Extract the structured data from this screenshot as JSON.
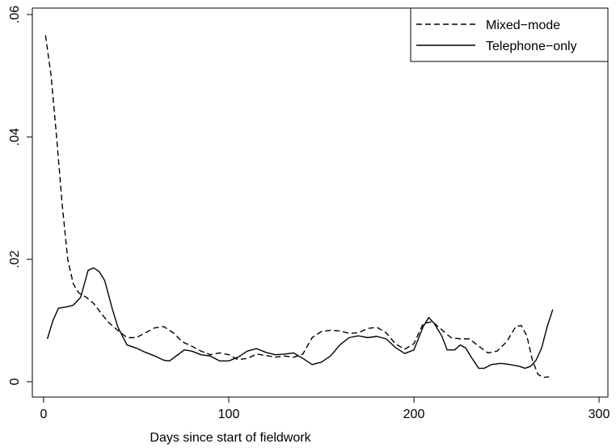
{
  "chart_data": {
    "type": "line",
    "title": "",
    "xlabel": "Days since start of fieldwork",
    "ylabel": "",
    "xlim": [
      0,
      300
    ],
    "ylim": [
      0,
      0.06
    ],
    "grid": false,
    "legend_position": "top-right",
    "x_ticks": [
      {
        "value": 0,
        "label": "0"
      },
      {
        "value": 100,
        "label": "100"
      },
      {
        "value": 200,
        "label": "200"
      },
      {
        "value": 300,
        "label": "300"
      }
    ],
    "y_ticks": [
      {
        "value": 0,
        "label": "0"
      },
      {
        "value": 0.02,
        "label": ".02"
      },
      {
        "value": 0.04,
        "label": ".04"
      },
      {
        "value": 0.06,
        "label": ".06"
      }
    ],
    "series": [
      {
        "name": "Mixed−mode",
        "style": "dashed",
        "color": "#000000",
        "points": [
          [
            1,
            0.0566
          ],
          [
            4,
            0.05
          ],
          [
            7,
            0.04
          ],
          [
            10,
            0.029
          ],
          [
            13,
            0.02
          ],
          [
            16,
            0.016
          ],
          [
            19,
            0.0145
          ],
          [
            23,
            0.0138
          ],
          [
            27,
            0.0128
          ],
          [
            31,
            0.0112
          ],
          [
            35,
            0.0097
          ],
          [
            40,
            0.0084
          ],
          [
            45,
            0.0072
          ],
          [
            50,
            0.0072
          ],
          [
            55,
            0.008
          ],
          [
            60,
            0.0088
          ],
          [
            65,
            0.009
          ],
          [
            70,
            0.008
          ],
          [
            75,
            0.0065
          ],
          [
            80,
            0.0058
          ],
          [
            85,
            0.005
          ],
          [
            90,
            0.0044
          ],
          [
            95,
            0.0047
          ],
          [
            100,
            0.0044
          ],
          [
            105,
            0.0036
          ],
          [
            110,
            0.0038
          ],
          [
            115,
            0.0045
          ],
          [
            120,
            0.0043
          ],
          [
            125,
            0.004
          ],
          [
            130,
            0.0042
          ],
          [
            135,
            0.004
          ],
          [
            140,
            0.0045
          ],
          [
            145,
            0.0072
          ],
          [
            150,
            0.0082
          ],
          [
            155,
            0.0084
          ],
          [
            160,
            0.0083
          ],
          [
            165,
            0.0079
          ],
          [
            170,
            0.008
          ],
          [
            175,
            0.0087
          ],
          [
            180,
            0.0089
          ],
          [
            185,
            0.008
          ],
          [
            190,
            0.0062
          ],
          [
            195,
            0.0053
          ],
          [
            200,
            0.0062
          ],
          [
            205,
            0.0095
          ],
          [
            210,
            0.0098
          ],
          [
            215,
            0.0085
          ],
          [
            220,
            0.0072
          ],
          [
            225,
            0.007
          ],
          [
            230,
            0.007
          ],
          [
            235,
            0.0058
          ],
          [
            240,
            0.0047
          ],
          [
            245,
            0.005
          ],
          [
            250,
            0.0065
          ],
          [
            255,
            0.009
          ],
          [
            258,
            0.0092
          ],
          [
            261,
            0.0075
          ],
          [
            264,
            0.0035
          ],
          [
            267,
            0.0012
          ],
          [
            270,
            0.0007
          ],
          [
            273,
            0.0008
          ]
        ]
      },
      {
        "name": "Telephone−only",
        "style": "solid",
        "color": "#000000",
        "points": [
          [
            2,
            0.007
          ],
          [
            5,
            0.01
          ],
          [
            8,
            0.012
          ],
          [
            12,
            0.0122
          ],
          [
            16,
            0.0125
          ],
          [
            20,
            0.0138
          ],
          [
            24,
            0.0182
          ],
          [
            27,
            0.0186
          ],
          [
            30,
            0.018
          ],
          [
            33,
            0.0165
          ],
          [
            37,
            0.012
          ],
          [
            40,
            0.009
          ],
          [
            45,
            0.006
          ],
          [
            50,
            0.0055
          ],
          [
            55,
            0.0048
          ],
          [
            60,
            0.0042
          ],
          [
            65,
            0.0035
          ],
          [
            68,
            0.0034
          ],
          [
            72,
            0.0043
          ],
          [
            76,
            0.0052
          ],
          [
            80,
            0.005
          ],
          [
            85,
            0.0044
          ],
          [
            90,
            0.0042
          ],
          [
            95,
            0.0034
          ],
          [
            100,
            0.0034
          ],
          [
            105,
            0.004
          ],
          [
            110,
            0.005
          ],
          [
            115,
            0.0054
          ],
          [
            120,
            0.0048
          ],
          [
            125,
            0.0044
          ],
          [
            130,
            0.0045
          ],
          [
            135,
            0.0047
          ],
          [
            140,
            0.0038
          ],
          [
            145,
            0.0028
          ],
          [
            150,
            0.0032
          ],
          [
            155,
            0.0042
          ],
          [
            160,
            0.006
          ],
          [
            165,
            0.0072
          ],
          [
            170,
            0.0075
          ],
          [
            175,
            0.0072
          ],
          [
            180,
            0.0074
          ],
          [
            185,
            0.007
          ],
          [
            190,
            0.0056
          ],
          [
            195,
            0.0046
          ],
          [
            200,
            0.0052
          ],
          [
            205,
            0.009
          ],
          [
            208,
            0.0105
          ],
          [
            211,
            0.0095
          ],
          [
            215,
            0.0075
          ],
          [
            218,
            0.0052
          ],
          [
            222,
            0.0052
          ],
          [
            225,
            0.006
          ],
          [
            228,
            0.0055
          ],
          [
            231,
            0.004
          ],
          [
            235,
            0.0022
          ],
          [
            238,
            0.0022
          ],
          [
            242,
            0.0028
          ],
          [
            247,
            0.003
          ],
          [
            252,
            0.0028
          ],
          [
            257,
            0.0025
          ],
          [
            260,
            0.0022
          ],
          [
            263,
            0.0025
          ],
          [
            266,
            0.0035
          ],
          [
            269,
            0.0055
          ],
          [
            272,
            0.009
          ],
          [
            275,
            0.0118
          ]
        ]
      }
    ]
  }
}
